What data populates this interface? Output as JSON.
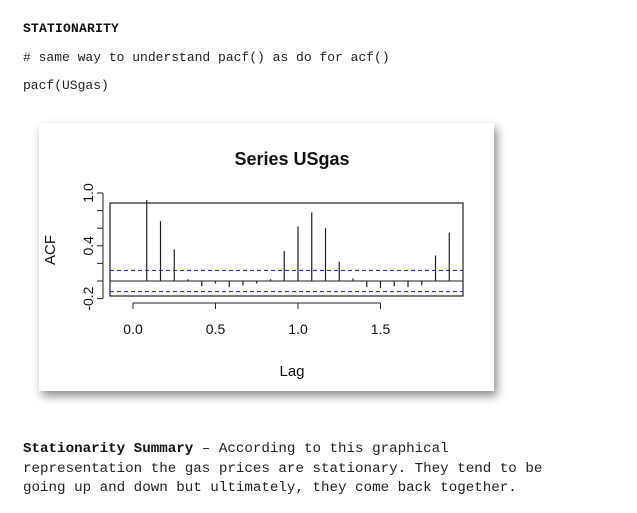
{
  "document": {
    "heading": "STATIONARITY",
    "code_comment": "# same way to understand pacf() as do for acf()",
    "code_call": "pacf(USgas)",
    "summary_title": "Stationarity Summary",
    "summary_body_line1": " – According to this graphical",
    "summary_body_line2": "representation the gas prices are stationary. They tend to be",
    "summary_body_line3": "going up and down but ultimately, they come back together."
  },
  "chart_data": {
    "type": "bar",
    "title": "Series  USgas",
    "xlabel": "Lag",
    "ylabel": "ACF",
    "xlim": [
      0,
      2
    ],
    "ylim": [
      -0.2,
      1.0
    ],
    "x_ticks": [
      "0.0",
      "0.5",
      "1.0",
      "1.5"
    ],
    "x_tick_values": [
      0.0,
      0.5,
      1.0,
      1.5
    ],
    "y_ticks": [
      "-0.2",
      "0.4",
      "1.0"
    ],
    "y_tick_values": [
      -0.2,
      0.4,
      1.0
    ],
    "confidence_bounds": [
      0.12,
      -0.12
    ],
    "confidence_color": "#3333cc",
    "zero_line": 0,
    "lags": [
      0.0833,
      0.1667,
      0.25,
      0.3333,
      0.4167,
      0.5,
      0.5833,
      0.6667,
      0.75,
      0.8333,
      0.9167,
      1.0,
      1.0833,
      1.1667,
      1.25,
      1.3333,
      1.4167,
      1.5,
      1.5833,
      1.6667,
      1.75,
      1.8333,
      1.9167
    ],
    "values": [
      0.92,
      0.68,
      0.36,
      0.02,
      -0.06,
      -0.03,
      -0.07,
      -0.05,
      -0.03,
      0.02,
      0.34,
      0.62,
      0.78,
      0.6,
      0.22,
      0.03,
      -0.07,
      -0.08,
      -0.06,
      -0.07,
      -0.05,
      0.29,
      0.55
    ]
  }
}
